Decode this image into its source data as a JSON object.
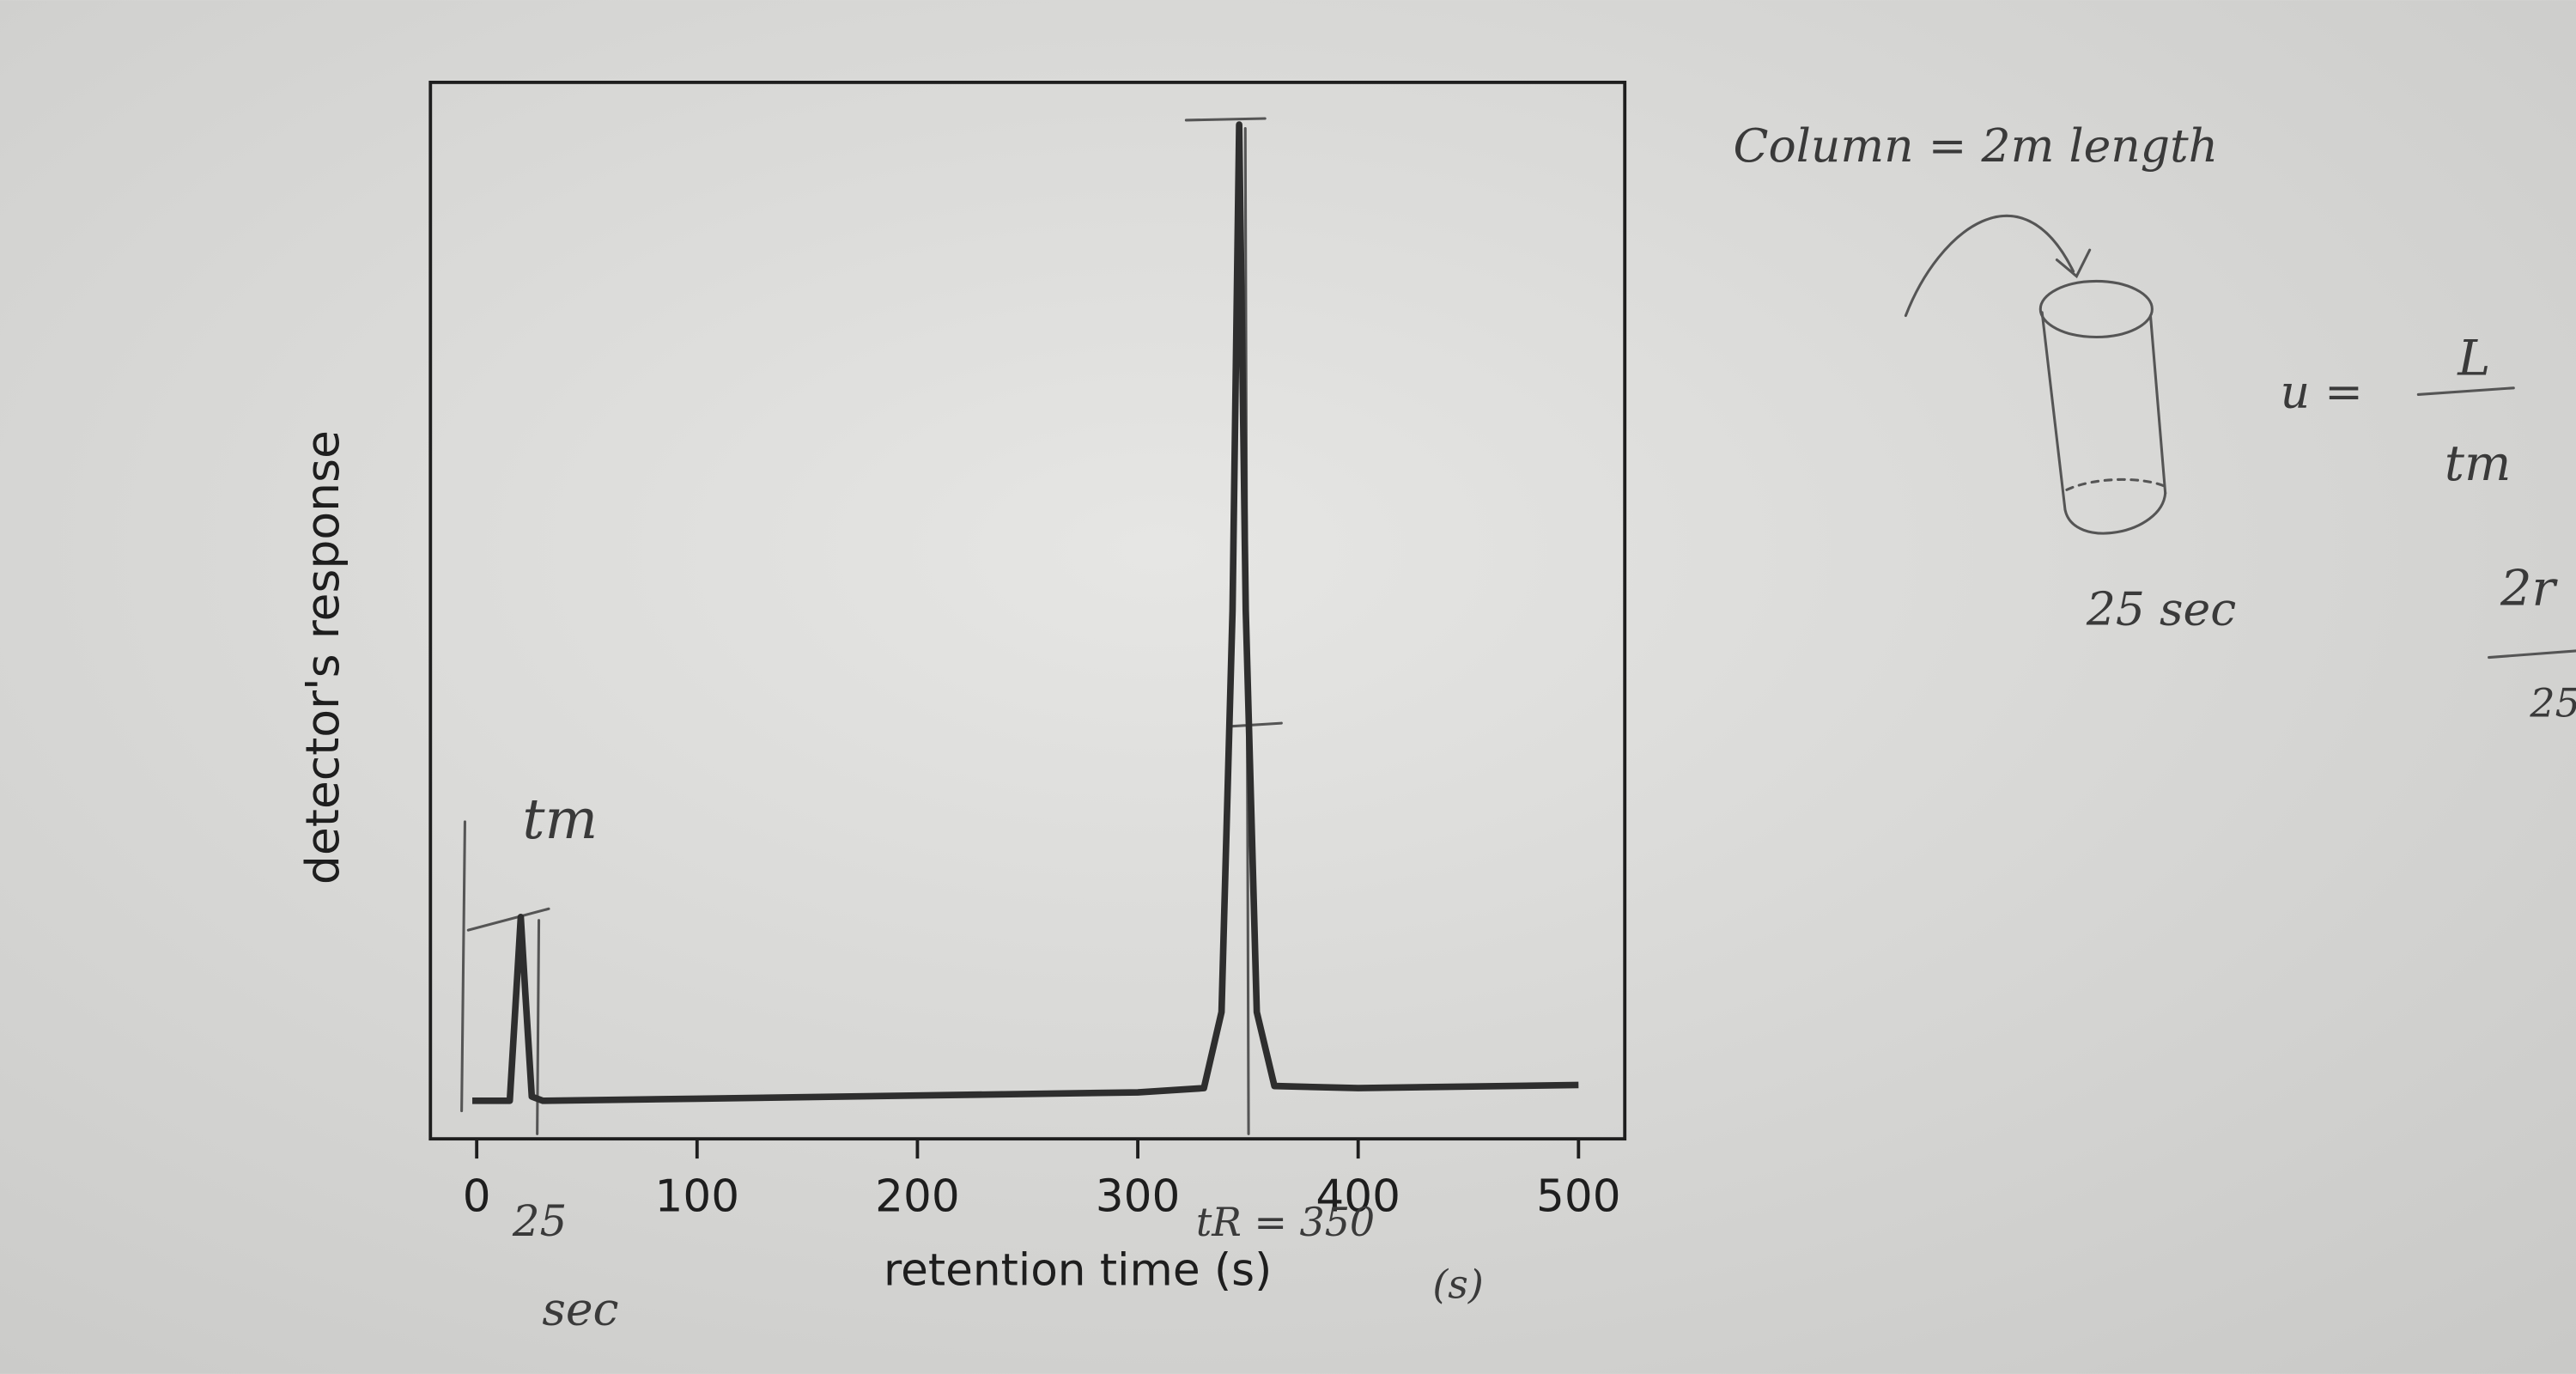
{
  "chart_data": {
    "type": "line",
    "x_label": "retention time (s)",
    "y_label": "detector's response",
    "x": [
      -2,
      15,
      18,
      20,
      22,
      25,
      30,
      100,
      200,
      300,
      330,
      338,
      343,
      346,
      349,
      354,
      362,
      400,
      500
    ],
    "values": [
      3.6,
      3.6,
      14,
      21,
      14,
      4,
      3.6,
      3.8,
      4.1,
      4.4,
      4.8,
      12,
      50,
      96,
      50,
      12,
      5,
      4.8,
      5.1
    ],
    "color": "#2e2e2e",
    "xlim": [
      -21,
      521
    ],
    "ylim": [
      0,
      100
    ],
    "xticks": [
      0,
      100,
      200,
      300,
      400,
      500
    ],
    "annotations": [
      "tm",
      "25",
      "sec",
      "tR = 350",
      "(s)",
      "Column = 2m length",
      "25 sec",
      "u =",
      "L",
      "tm",
      "2r",
      "25"
    ]
  }
}
